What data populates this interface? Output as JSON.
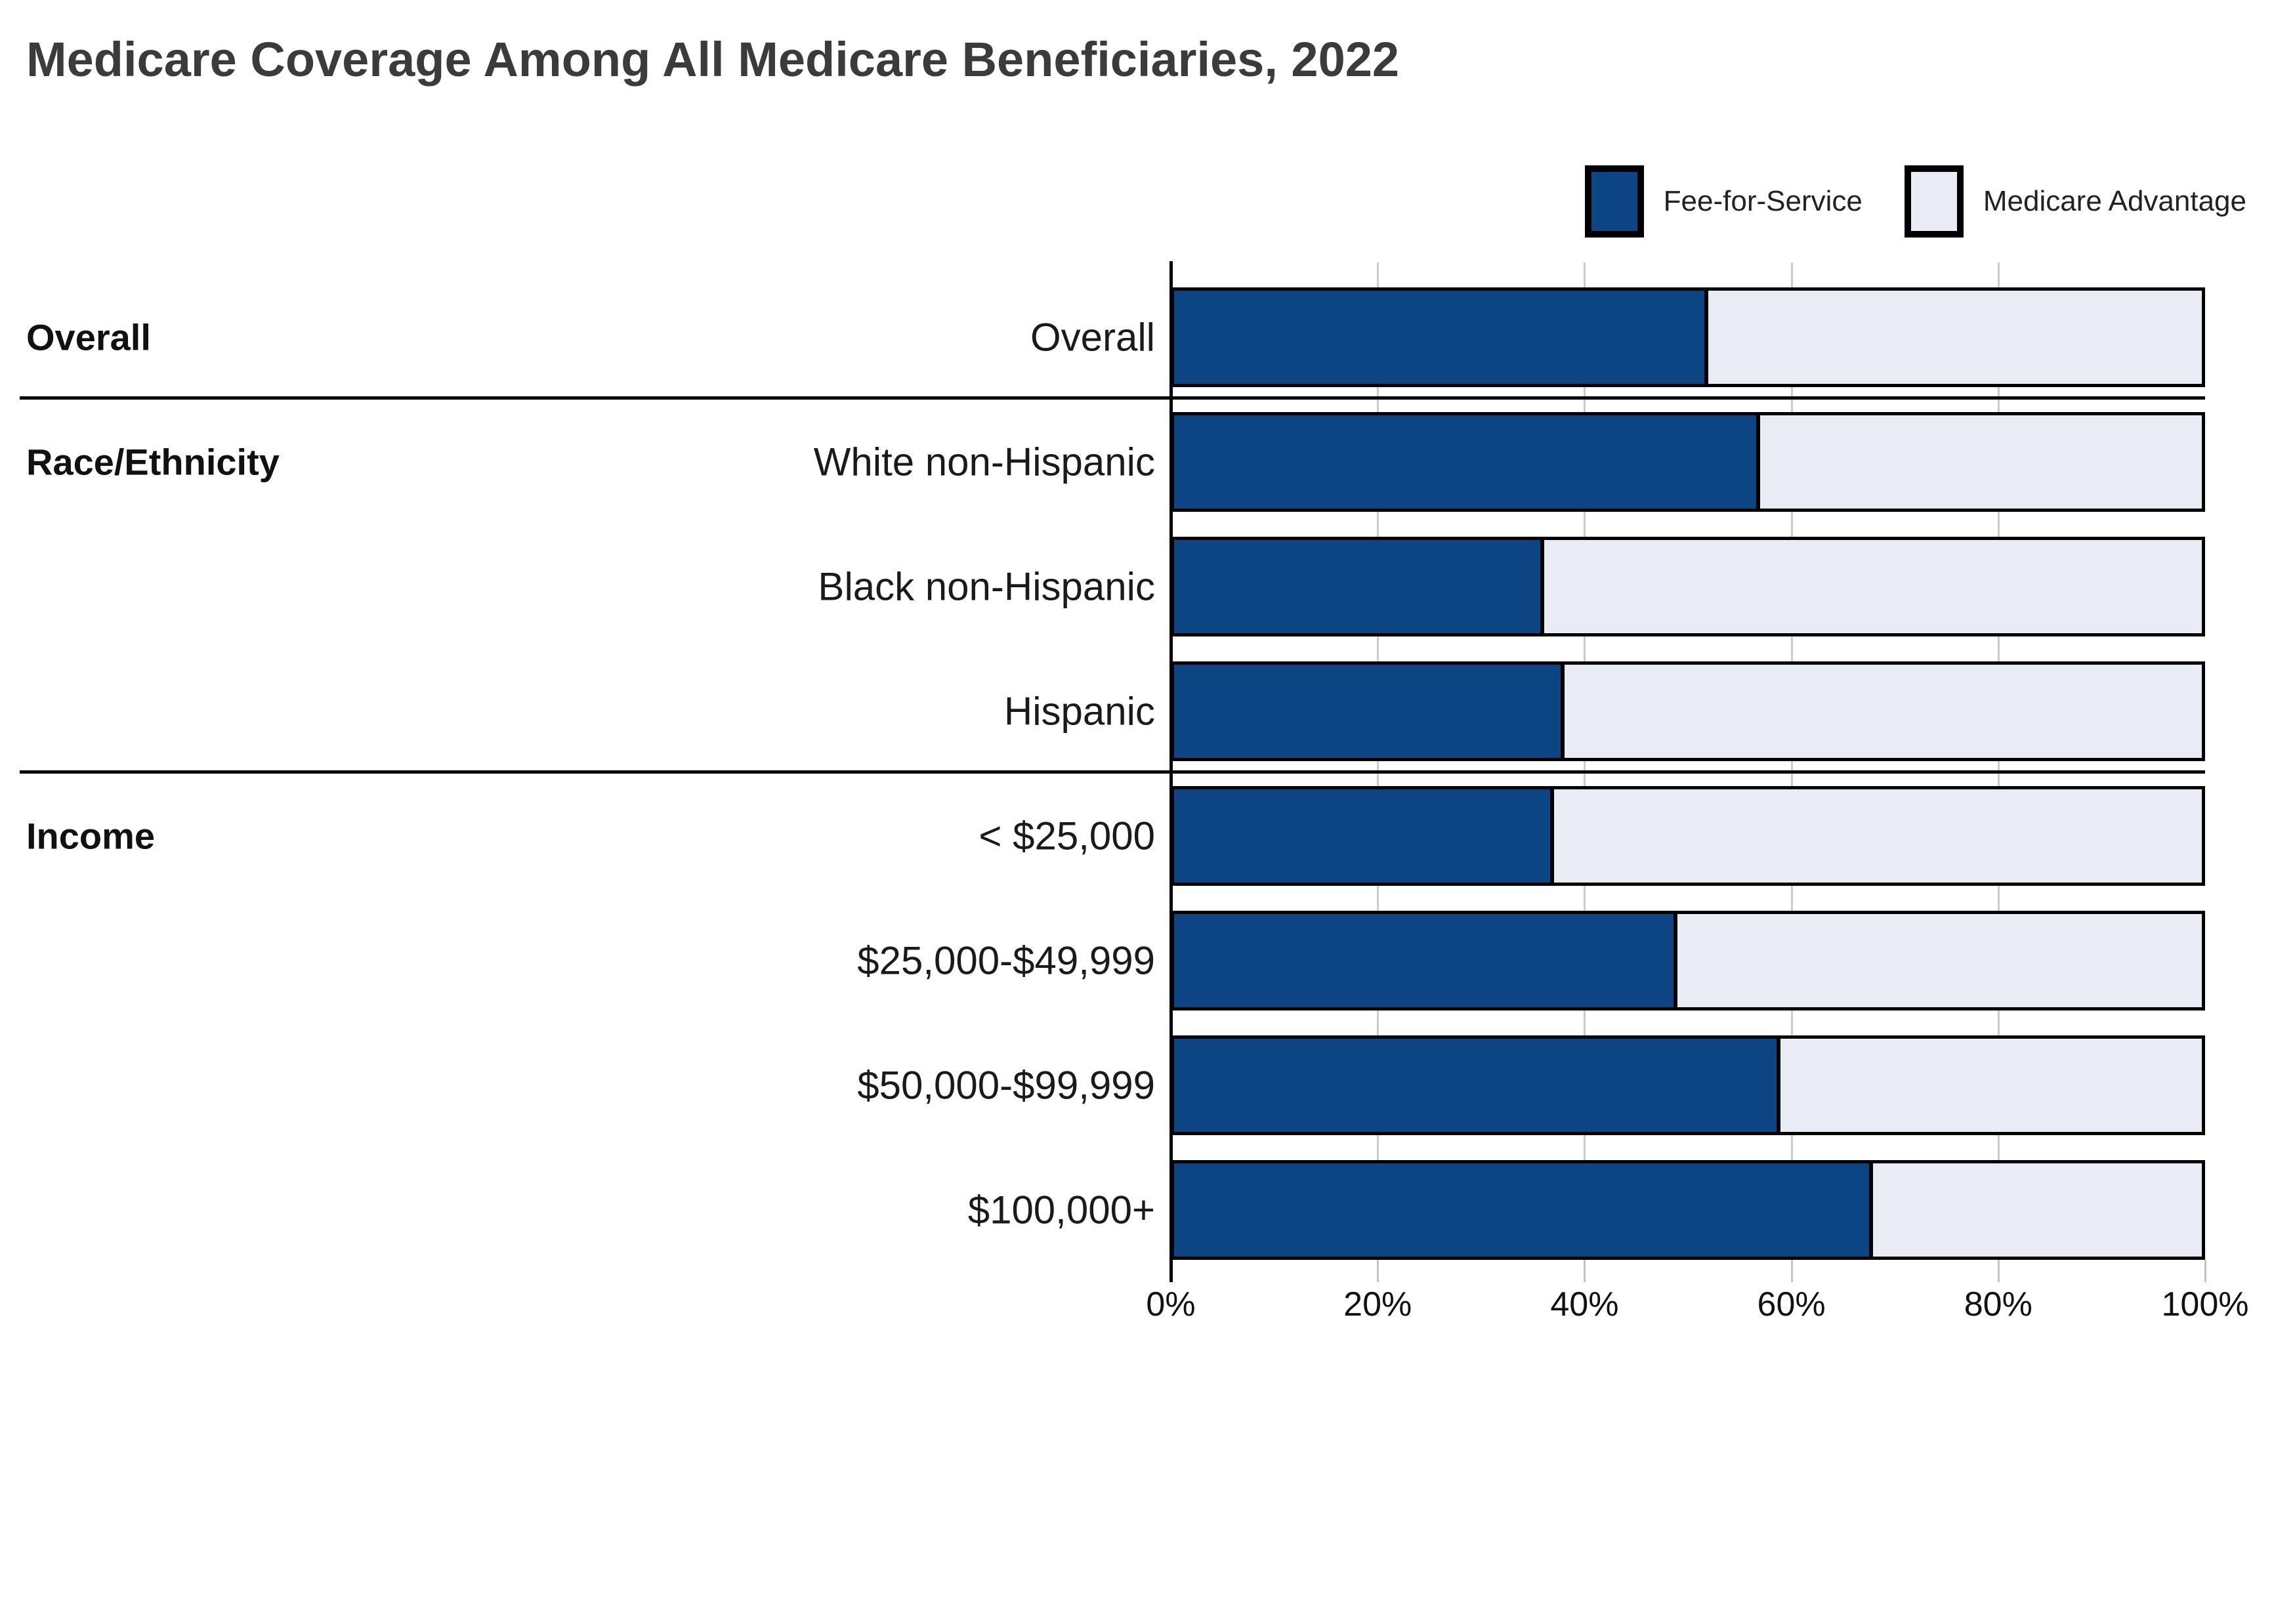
{
  "title": "Medicare Coverage Among All Medicare Beneficiaries, 2022",
  "legend": {
    "items": [
      {
        "label": "Fee-for-Service",
        "color": "#0D4584"
      },
      {
        "label": "Medicare Advantage",
        "color": "#E9ECF4"
      }
    ]
  },
  "chart_data": {
    "type": "bar",
    "orientation": "horizontal",
    "stacked": true,
    "title": "Medicare Coverage Among All Medicare Beneficiaries, 2022",
    "xlabel": "",
    "ylabel": "",
    "xlim": [
      0,
      100
    ],
    "x_tick_labels": [
      "0%",
      "20%",
      "40%",
      "60%",
      "80%",
      "100%"
    ],
    "grid": "vertical-light",
    "legend_position": "top-right",
    "series": [
      {
        "name": "Fee-for-Service",
        "color": "#0D4584"
      },
      {
        "name": "Medicare Advantage",
        "color": "#E9ECF4"
      }
    ],
    "groups": [
      {
        "label": "Overall",
        "rows": [
          {
            "label": "Overall",
            "fee_for_service": 52,
            "medicare_advantage": 48
          }
        ]
      },
      {
        "label": "Race/Ethnicity",
        "rows": [
          {
            "label": "White non-Hispanic",
            "fee_for_service": 57,
            "medicare_advantage": 43
          },
          {
            "label": "Black non-Hispanic",
            "fee_for_service": 36,
            "medicare_advantage": 64
          },
          {
            "label": "Hispanic",
            "fee_for_service": 38,
            "medicare_advantage": 62
          }
        ]
      },
      {
        "label": "Income",
        "rows": [
          {
            "label": "< $25,000",
            "fee_for_service": 37,
            "medicare_advantage": 63
          },
          {
            "label": "$25,000-$49,999",
            "fee_for_service": 49,
            "medicare_advantage": 51
          },
          {
            "label": "$50,000-$99,999",
            "fee_for_service": 59,
            "medicare_advantage": 41
          },
          {
            "label": "$100,000+",
            "fee_for_service": 68,
            "medicare_advantage": 32
          }
        ]
      }
    ]
  }
}
